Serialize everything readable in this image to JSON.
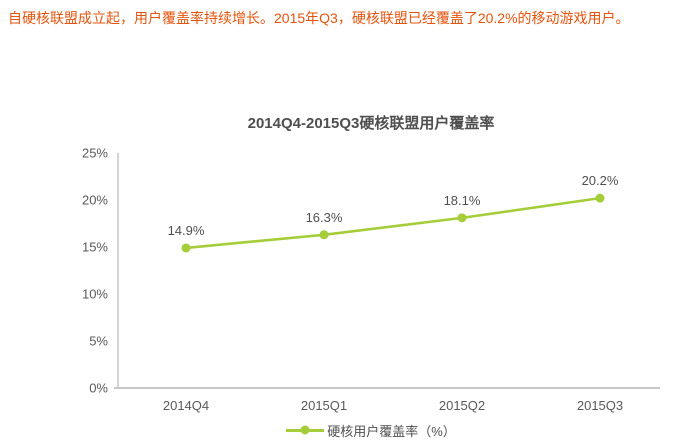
{
  "header": {
    "summary": "自硬核联盟成立起，用户覆盖率持续增长。2015年Q3，硬核联盟已经覆盖了20.2%的移动游戏用户。"
  },
  "chart_data": {
    "type": "line",
    "title": "2014Q4-2015Q3硬核联盟用户覆盖率",
    "categories": [
      "2014Q4",
      "2015Q1",
      "2015Q2",
      "2015Q3"
    ],
    "series": [
      {
        "name": "硬核用户覆盖率（%）",
        "values": [
          14.9,
          16.3,
          18.1,
          20.2
        ],
        "labels": [
          "14.9%",
          "16.3%",
          "18.1%",
          "20.2%"
        ],
        "color": "#a5cd39"
      }
    ],
    "xlabel": "",
    "ylabel": "",
    "ylim": [
      0,
      25
    ],
    "ytick_step": 5,
    "ytick_labels": [
      "0%",
      "5%",
      "10%",
      "15%",
      "20%",
      "25%"
    ],
    "grid": false,
    "legend_position": "bottom",
    "legend_label": "硬核用户覆盖率（%）"
  },
  "colors": {
    "accent_orange": "#e5540e",
    "series_green": "#a5cd39",
    "axis_line": "#c6c6c6",
    "text_dark": "#4f4f4f",
    "text_axis": "#595959"
  }
}
